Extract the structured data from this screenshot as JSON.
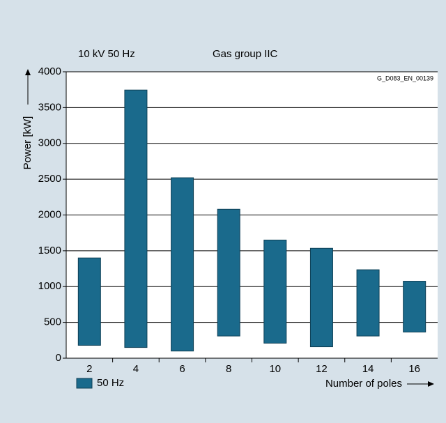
{
  "chart_data": {
    "type": "floating-bar",
    "annotations": [
      "10 kV 50 Hz",
      "Gas group IIC",
      "G_D083_EN_00139"
    ],
    "ylabel": "Power [kW]",
    "xlabel": "Number of poles",
    "categories": [
      "2",
      "4",
      "6",
      "8",
      "10",
      "12",
      "14",
      "16"
    ],
    "series": [
      {
        "name": "50 Hz",
        "color": "#1a6a8c",
        "low": [
          180,
          150,
          100,
          310,
          210,
          160,
          310,
          365
        ],
        "high": [
          1400,
          3745,
          2520,
          2080,
          1650,
          1535,
          1235,
          1075
        ]
      }
    ],
    "ylim": [
      0,
      4000
    ],
    "yticks": [
      0,
      500,
      1000,
      1500,
      2000,
      2500,
      3000,
      3500,
      4000
    ],
    "grid": true
  }
}
